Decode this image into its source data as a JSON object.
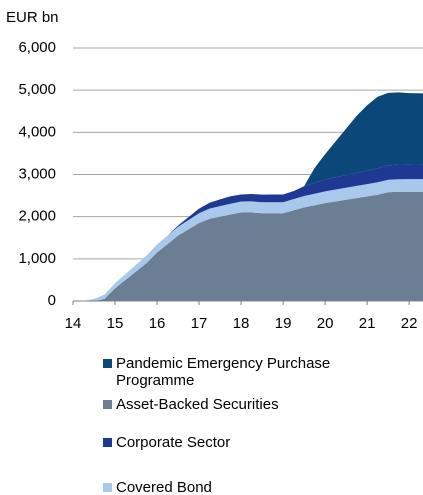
{
  "chart_data": {
    "type": "stacked-area",
    "y_label": "EUR bn",
    "x": [
      14.25,
      14.5,
      14.75,
      15,
      15.25,
      15.5,
      15.75,
      16,
      16.25,
      16.5,
      16.75,
      17,
      17.25,
      17.5,
      17.75,
      18,
      18.25,
      18.5,
      18.75,
      19,
      19.25,
      19.5,
      19.75,
      20,
      20.25,
      20.5,
      20.75,
      21,
      21.25,
      21.5,
      21.75,
      22,
      22.33
    ],
    "series": [
      {
        "name": "Pandemic Emergency Purchase Programme",
        "color": "#0b4778",
        "values": [
          0,
          0,
          0,
          0,
          0,
          0,
          0,
          0,
          0,
          0,
          0,
          0,
          0,
          0,
          0,
          0,
          0,
          0,
          0,
          0,
          0,
          0,
          350,
          600,
          850,
          1100,
          1350,
          1550,
          1700,
          1720,
          1710,
          1690,
          1690
        ]
      },
      {
        "name": "Asset-Backed Securities",
        "color": "#6b7e94",
        "values": [
          0,
          0,
          50,
          300,
          500,
          700,
          900,
          1150,
          1350,
          1550,
          1700,
          1850,
          1950,
          2000,
          2050,
          2100,
          2100,
          2080,
          2080,
          2080,
          2150,
          2220,
          2270,
          2320,
          2360,
          2400,
          2440,
          2480,
          2520,
          2580,
          2590,
          2590,
          2590
        ]
      },
      {
        "name": "Corporate Sector",
        "color": "#1f3894",
        "values": [
          0,
          0,
          0,
          0,
          0,
          0,
          0,
          0,
          0,
          30,
          70,
          110,
          140,
          160,
          180,
          165,
          175,
          180,
          185,
          185,
          190,
          230,
          260,
          280,
          290,
          300,
          310,
          320,
          330,
          340,
          350,
          350,
          345
        ]
      },
      {
        "name": "Covered Bond",
        "color": "#a9c9ec",
        "values": [
          0,
          50,
          100,
          120,
          140,
          160,
          180,
          190,
          200,
          210,
          220,
          230,
          240,
          250,
          255,
          260,
          262,
          262,
          262,
          262,
          265,
          270,
          275,
          280,
          285,
          287,
          289,
          292,
          295,
          297,
          298,
          300,
          300
        ]
      }
    ],
    "stack_order": [
      "Asset-Backed Securities",
      "Covered Bond",
      "Corporate Sector",
      "Pandemic Emergency Purchase Programme"
    ],
    "xlim": [
      14,
      22.33
    ],
    "xticks": [
      14,
      15,
      16,
      17,
      18,
      19,
      20,
      21,
      22
    ],
    "ylim": [
      0,
      6000
    ],
    "yticks": [
      0,
      {
        "value": 1000,
        "label": "1,000"
      },
      {
        "value": 2000,
        "label": "2,000"
      },
      {
        "value": 3000,
        "label": "3,000"
      },
      {
        "value": 4000,
        "label": "4,000"
      },
      {
        "value": 5000,
        "label": "5,000"
      },
      {
        "value": 6000,
        "label": "6,000"
      }
    ],
    "grid": true
  }
}
